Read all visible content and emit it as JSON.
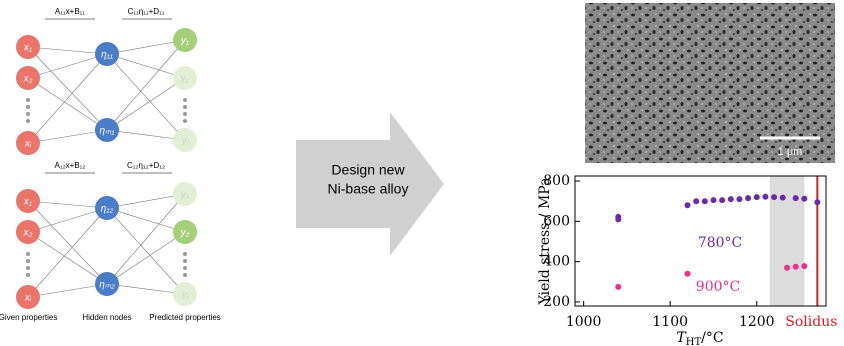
{
  "diagram": {
    "networks": [
      {
        "formula_in": "A₁₁x+B₁₁",
        "formula_out": "C₁₁η₁₁+D₁₁",
        "inputs": [
          "x₁",
          "x₂",
          "xᵢ"
        ],
        "hidden": [
          "η₁₁",
          "ηₘ₁"
        ],
        "outputs": [
          "y₁",
          "y₂",
          "yⱼ"
        ]
      },
      {
        "formula_in": "A₁₂x+B₁₂",
        "formula_out": "C₁₂η₁₂+D₁₂",
        "inputs": [
          "x₁",
          "x₂",
          "xᵢ"
        ],
        "hidden": [
          "η₁₂",
          "ηₘ₂"
        ],
        "outputs": [
          "y₁",
          "y₂",
          "yⱼ"
        ]
      }
    ],
    "labels": [
      "Given properties",
      "Hidden nodes",
      "Predicted properties"
    ],
    "arrow_text": [
      "Design new",
      "Ni-base alloy"
    ],
    "scale_bar": "1 μm"
  },
  "chart_data": {
    "type": "scatter",
    "ylabel": "Yield stress / MPa",
    "xlabel": {
      "symbol": "T",
      "subscript": "HT",
      "unit": "/°C"
    },
    "xlim": [
      990,
      1280
    ],
    "xticks": [
      1000,
      1100,
      1200
    ],
    "ylim": [
      180,
      825
    ],
    "yticks": [
      200,
      400,
      600,
      800
    ],
    "solidus": {
      "x": 1270,
      "label": "Solidus",
      "color": "#d62020"
    },
    "shaded_range": [
      1215,
      1255
    ],
    "series": [
      {
        "name": "780°C",
        "color": "#6a2ca0",
        "x": [
          1040,
          1040,
          1120,
          1130,
          1140,
          1150,
          1160,
          1170,
          1180,
          1190,
          1200,
          1210,
          1220,
          1230,
          1245,
          1255,
          1270
        ],
        "values": [
          610,
          622,
          680,
          700,
          700,
          705,
          705,
          710,
          710,
          715,
          720,
          722,
          720,
          718,
          715,
          712,
          695
        ]
      },
      {
        "name": "900°C",
        "color": "#e8308c",
        "x": [
          1040,
          1120,
          1235,
          1245,
          1255
        ],
        "values": [
          275,
          340,
          370,
          375,
          378
        ]
      }
    ]
  }
}
